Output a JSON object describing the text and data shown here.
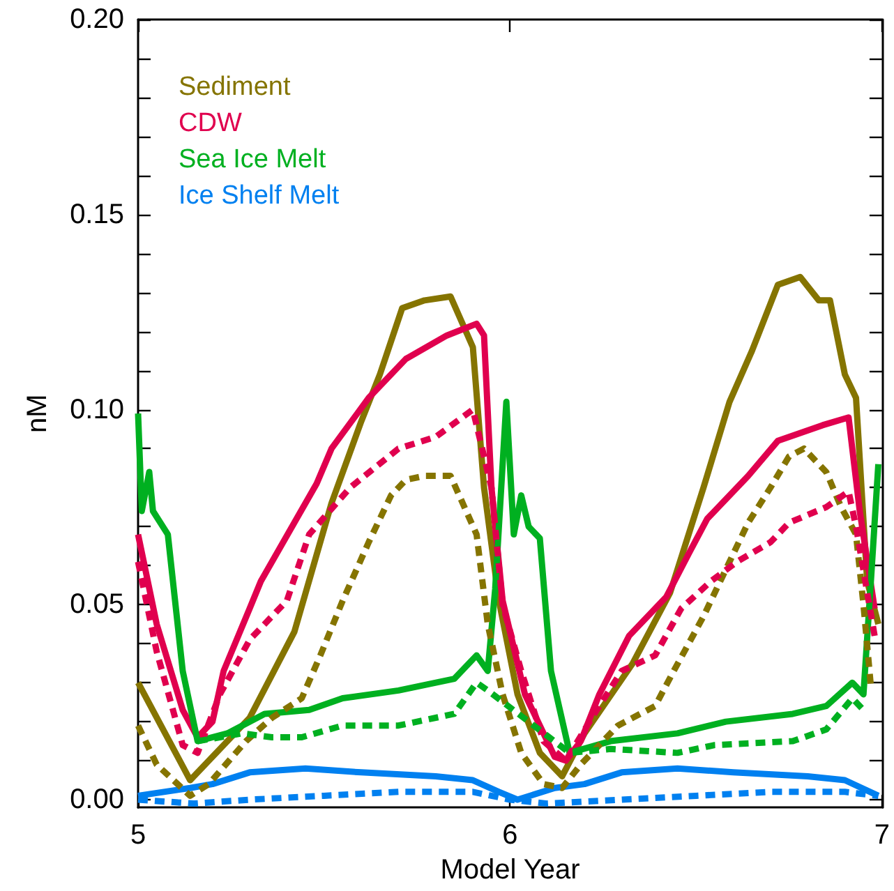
{
  "chart_data": {
    "type": "line",
    "xlabel": "Model Year",
    "ylabel": "nM",
    "xlim": [
      5,
      7
    ],
    "xticks": [
      5,
      6,
      7
    ],
    "ylim": [
      -0.002,
      0.2
    ],
    "yticks": [
      {
        "value": 0,
        "label": "0.00"
      },
      {
        "value": 0.01,
        "label": null
      },
      {
        "value": 0.02,
        "label": null
      },
      {
        "value": 0.03,
        "label": null
      },
      {
        "value": 0.04,
        "label": null
      },
      {
        "value": 0.05,
        "label": "0.05"
      },
      {
        "value": 0.06,
        "label": null
      },
      {
        "value": 0.07,
        "label": null
      },
      {
        "value": 0.08,
        "label": null
      },
      {
        "value": 0.09,
        "label": null
      },
      {
        "value": 0.1,
        "label": "0.10"
      },
      {
        "value": 0.11,
        "label": null
      },
      {
        "value": 0.12,
        "label": null
      },
      {
        "value": 0.13,
        "label": null
      },
      {
        "value": 0.14,
        "label": null
      },
      {
        "value": 0.15,
        "label": "0.15"
      },
      {
        "value": 0.16,
        "label": null
      },
      {
        "value": 0.17,
        "label": null
      },
      {
        "value": 0.18,
        "label": null
      },
      {
        "value": 0.19,
        "label": null
      },
      {
        "value": 0.2,
        "label": "0.20"
      }
    ],
    "grid": false,
    "legend": "top left",
    "marker": "none",
    "series": [
      {
        "name": "Sediment",
        "color": "#857400",
        "line_style": "solid",
        "x": [
          5.0,
          5.14,
          5.3,
          5.42,
          5.52,
          5.6,
          5.65,
          5.71,
          5.77,
          5.84,
          5.9,
          5.93,
          5.97,
          6.02,
          6.08,
          6.14,
          6.2,
          6.33,
          6.43,
          6.52,
          6.59,
          6.65,
          6.72,
          6.78,
          6.83,
          6.86,
          6.9,
          6.93,
          6.96,
          6.99
        ],
        "values": [
          0.03,
          0.005,
          0.021,
          0.043,
          0.076,
          0.097,
          0.109,
          0.126,
          0.128,
          0.129,
          0.116,
          0.08,
          0.051,
          0.027,
          0.012,
          0.006,
          0.017,
          0.035,
          0.053,
          0.08,
          0.102,
          0.115,
          0.132,
          0.134,
          0.128,
          0.128,
          0.109,
          0.103,
          0.056,
          0.045
        ]
      },
      {
        "name": "CDW",
        "color": "#e0004e",
        "line_style": "solid",
        "x": [
          5.0,
          5.05,
          5.12,
          5.16,
          5.2,
          5.23,
          5.3,
          5.33,
          5.42,
          5.48,
          5.52,
          5.62,
          5.72,
          5.83,
          5.91,
          5.93,
          5.95,
          5.98,
          6.04,
          6.12,
          6.15,
          6.19,
          6.24,
          6.32,
          6.42,
          6.48,
          6.53,
          6.64,
          6.72,
          6.84,
          6.91,
          6.94,
          6.98
        ],
        "values": [
          0.068,
          0.045,
          0.023,
          0.016,
          0.02,
          0.033,
          0.049,
          0.056,
          0.071,
          0.081,
          0.09,
          0.103,
          0.113,
          0.119,
          0.122,
          0.119,
          0.08,
          0.051,
          0.027,
          0.011,
          0.01,
          0.015,
          0.027,
          0.042,
          0.052,
          0.063,
          0.072,
          0.083,
          0.092,
          0.096,
          0.098,
          0.074,
          0.049
        ]
      },
      {
        "name": "Sea Ice Melt",
        "color": "#00b020",
        "line_style": "solid",
        "x": [
          5.0,
          5.01,
          5.03,
          5.04,
          5.08,
          5.12,
          5.16,
          5.24,
          5.34,
          5.46,
          5.55,
          5.7,
          5.85,
          5.91,
          5.94,
          5.96,
          5.99,
          6.01,
          6.03,
          6.05,
          6.08,
          6.11,
          6.16,
          6.27,
          6.45,
          6.58,
          6.76,
          6.85,
          6.92,
          6.95,
          6.97,
          6.99
        ],
        "values": [
          0.099,
          0.074,
          0.084,
          0.074,
          0.068,
          0.033,
          0.015,
          0.017,
          0.022,
          0.023,
          0.026,
          0.028,
          0.031,
          0.037,
          0.033,
          0.054,
          0.102,
          0.068,
          0.078,
          0.07,
          0.067,
          0.033,
          0.012,
          0.015,
          0.017,
          0.02,
          0.022,
          0.024,
          0.03,
          0.027,
          0.056,
          0.086
        ]
      },
      {
        "name": "Ice Shelf Melt",
        "color": "#0080f0",
        "line_style": "solid",
        "x": [
          5.0,
          5.14,
          5.2,
          5.3,
          5.45,
          5.6,
          5.8,
          5.9,
          5.97,
          6.02,
          6.12,
          6.2,
          6.3,
          6.45,
          6.6,
          6.8,
          6.9,
          6.99
        ],
        "values": [
          0.001,
          0.003,
          0.004,
          0.007,
          0.008,
          0.007,
          0.006,
          0.005,
          0.002,
          0.0,
          0.003,
          0.004,
          0.007,
          0.008,
          0.007,
          0.006,
          0.005,
          0.001
        ]
      },
      {
        "color": "#857400",
        "line_style": "dashed",
        "x": [
          5.0,
          5.05,
          5.14,
          5.19,
          5.29,
          5.36,
          5.44,
          5.49,
          5.55,
          5.62,
          5.68,
          5.72,
          5.77,
          5.84,
          5.91,
          5.94,
          5.98,
          6.03,
          6.09,
          6.14,
          6.19,
          6.29,
          6.39,
          6.44,
          6.52,
          6.58,
          6.64,
          6.7,
          6.75,
          6.79,
          6.85,
          6.89,
          6.93,
          6.95,
          6.97
        ],
        "values": [
          0.019,
          0.009,
          0.001,
          0.004,
          0.015,
          0.021,
          0.026,
          0.037,
          0.051,
          0.066,
          0.078,
          0.082,
          0.083,
          0.083,
          0.068,
          0.045,
          0.027,
          0.012,
          0.004,
          0.003,
          0.009,
          0.019,
          0.024,
          0.033,
          0.047,
          0.059,
          0.071,
          0.08,
          0.088,
          0.09,
          0.084,
          0.075,
          0.068,
          0.05,
          0.029
        ]
      },
      {
        "color": "#e0004e",
        "line_style": "dashed",
        "x": [
          5.0,
          5.05,
          5.12,
          5.16,
          5.22,
          5.3,
          5.4,
          5.46,
          5.57,
          5.7,
          5.8,
          5.9,
          5.95,
          5.98,
          6.03,
          6.09,
          6.15,
          6.22,
          6.3,
          6.39,
          6.46,
          6.54,
          6.61,
          6.7,
          6.75,
          6.85,
          6.91,
          6.93,
          6.98
        ],
        "values": [
          0.061,
          0.038,
          0.014,
          0.012,
          0.027,
          0.041,
          0.051,
          0.068,
          0.08,
          0.09,
          0.093,
          0.1,
          0.08,
          0.05,
          0.033,
          0.015,
          0.01,
          0.021,
          0.033,
          0.037,
          0.049,
          0.056,
          0.061,
          0.066,
          0.071,
          0.075,
          0.079,
          0.07,
          0.042
        ]
      },
      {
        "color": "#00b020",
        "line_style": "dashed",
        "x": [
          5.16,
          5.28,
          5.36,
          5.44,
          5.55,
          5.7,
          5.85,
          5.91,
          5.94,
          6.16,
          6.27,
          6.45,
          6.55,
          6.76,
          6.85,
          6.92,
          6.95
        ],
        "values": [
          0.015,
          0.017,
          0.016,
          0.016,
          0.019,
          0.019,
          0.022,
          0.03,
          0.028,
          0.012,
          0.013,
          0.012,
          0.014,
          0.015,
          0.018,
          0.026,
          0.023
        ]
      },
      {
        "color": "#0080f0",
        "line_style": "dashed",
        "x": [
          5.0,
          5.15,
          5.3,
          5.5,
          5.7,
          5.9,
          6.0,
          6.1,
          6.3,
          6.5,
          6.7,
          6.9,
          6.99
        ],
        "values": [
          0.0,
          -0.001,
          0.0,
          0.001,
          0.002,
          0.002,
          0.0,
          -0.001,
          0.0,
          0.001,
          0.002,
          0.002,
          0.001
        ]
      }
    ]
  }
}
